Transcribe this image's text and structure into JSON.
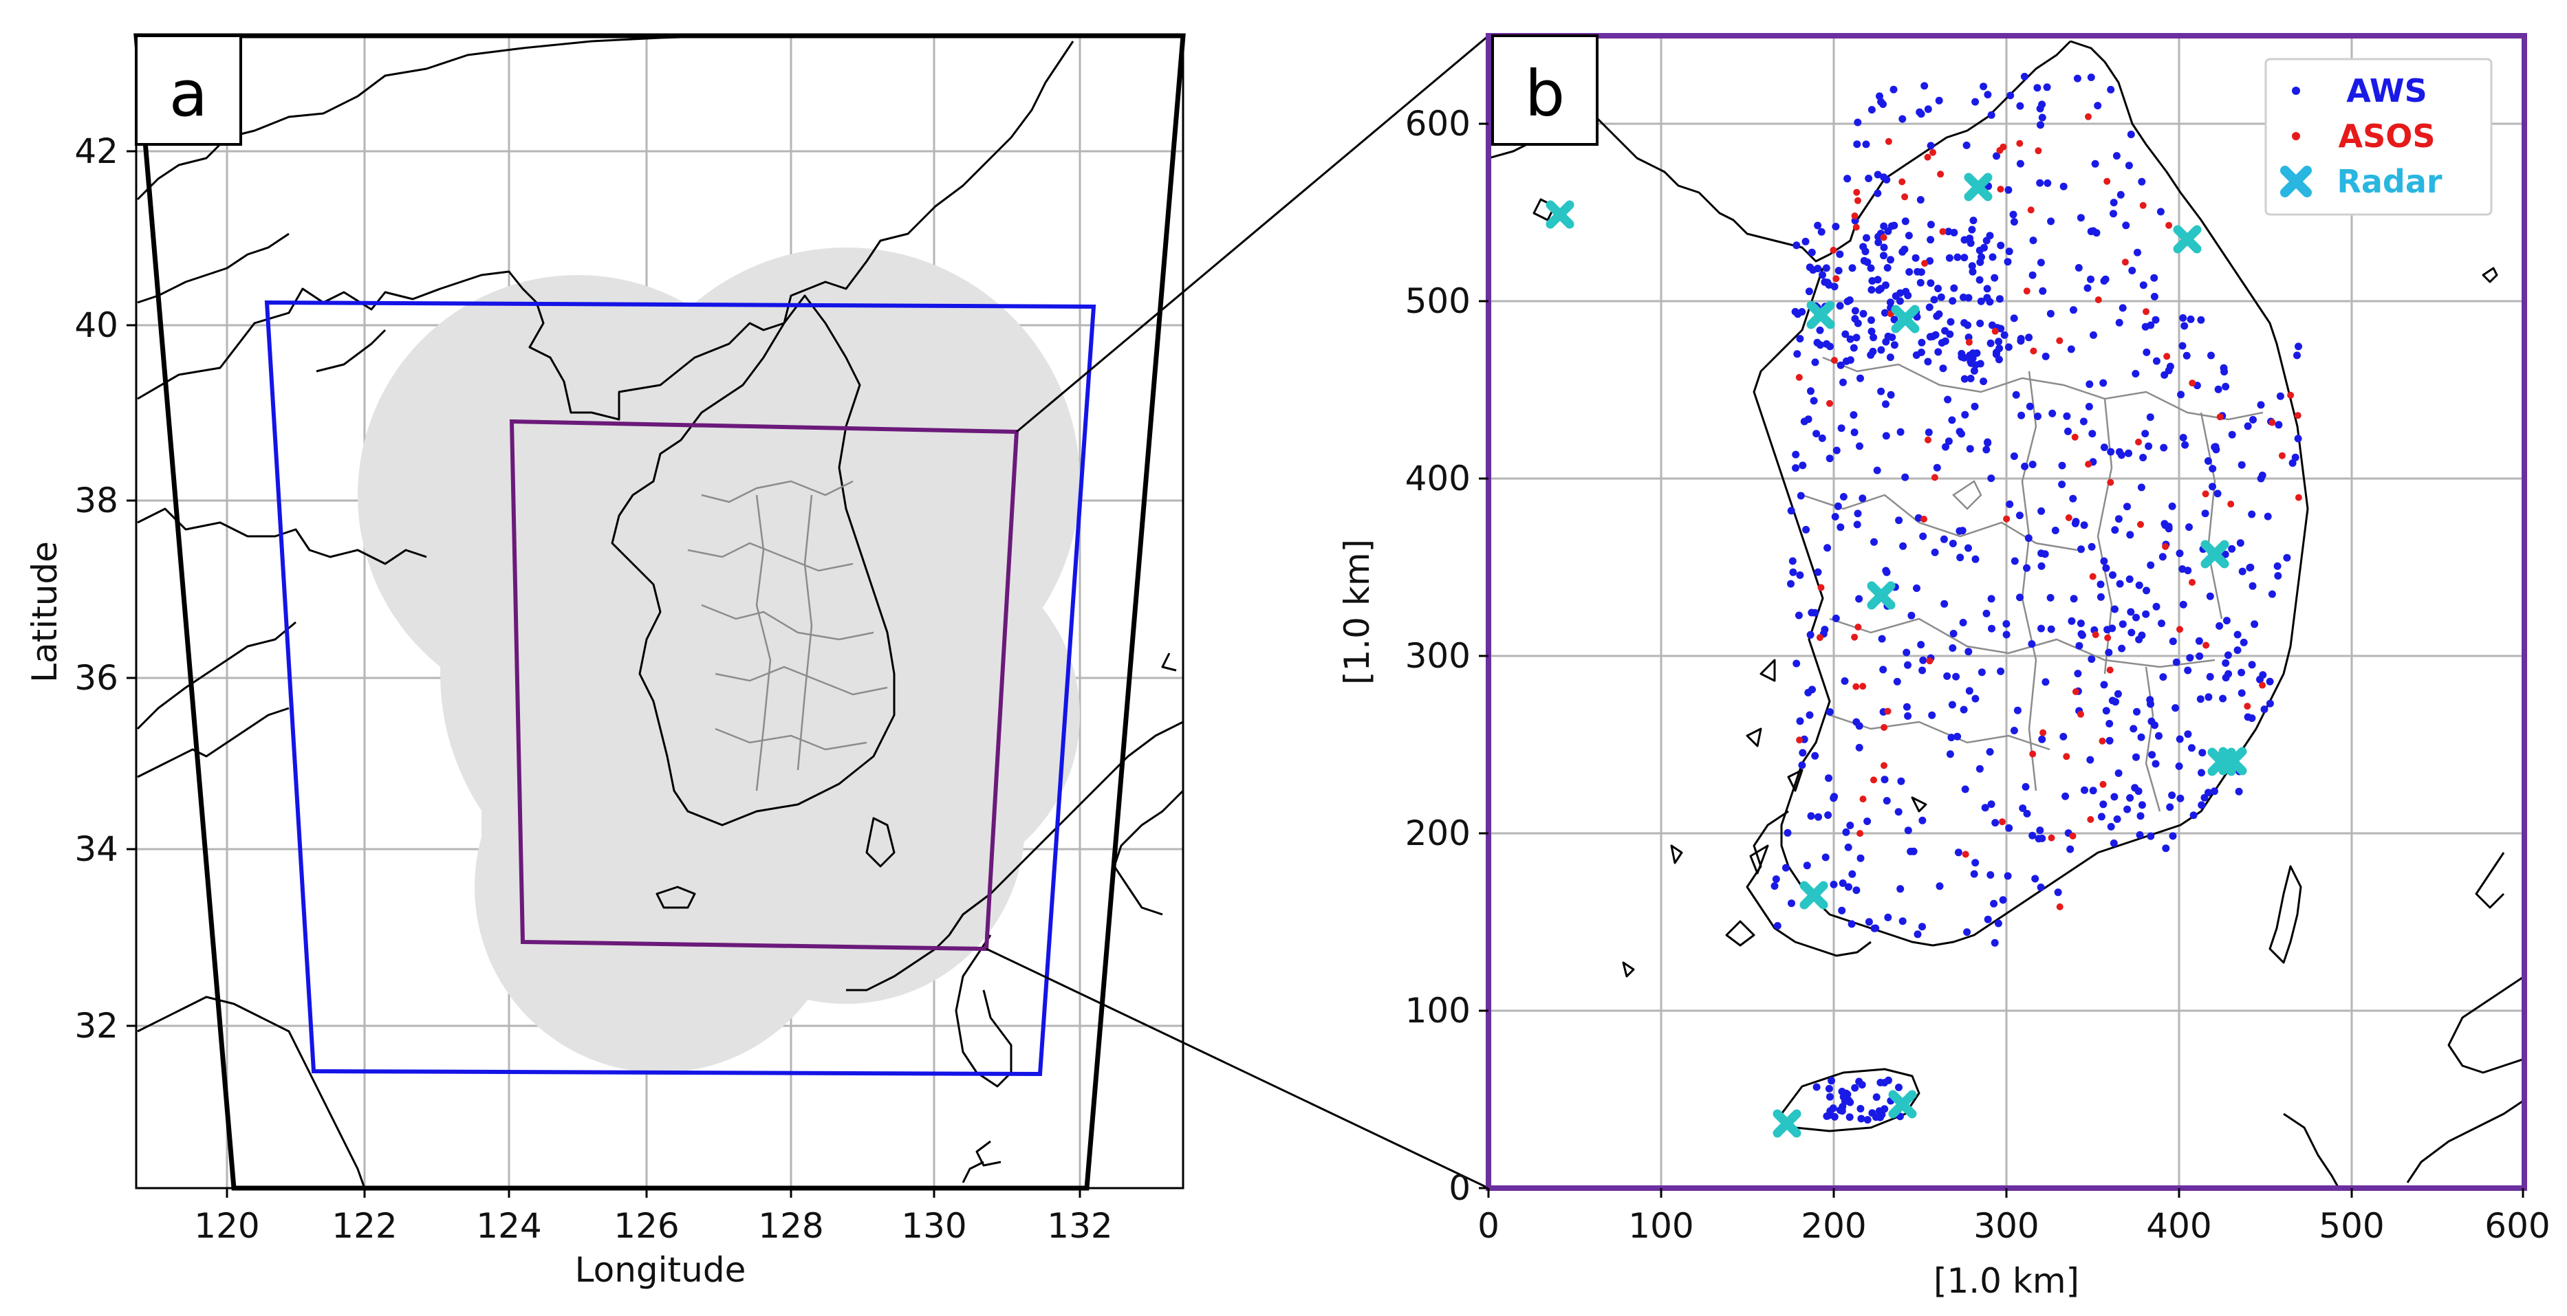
{
  "panel_a": {
    "label": "a",
    "xlabel": "Longitude",
    "ylabel": "Latitude",
    "x_ticks": [
      "120",
      "122",
      "124",
      "126",
      "128",
      "130",
      "132"
    ],
    "y_ticks": [
      "42",
      "40",
      "38",
      "36",
      "34",
      "32"
    ],
    "colors": {
      "outer_domain": "#000000",
      "middle_domain": "#1414e6",
      "inner_domain": "#6b1a7a",
      "radar_coverage": "#e2e2e2"
    }
  },
  "panel_b": {
    "label": "b",
    "xlabel": "[1.0 km]",
    "ylabel": "[1.0 km]",
    "x_ticks": [
      "0",
      "100",
      "200",
      "300",
      "400",
      "500",
      "600"
    ],
    "y_ticks": [
      "600",
      "500",
      "400",
      "300",
      "200",
      "100",
      "0"
    ],
    "legend": [
      {
        "label": "AWS",
        "color": "#1a1ae6",
        "marker": "dot"
      },
      {
        "label": "ASOS",
        "color": "#e61a1a",
        "marker": "dot"
      },
      {
        "label": "Radar",
        "color": "#29b6e0",
        "marker": "x"
      }
    ],
    "frame_color": "#6b2fa0",
    "radar_marker_color": "#29c4c4"
  }
}
